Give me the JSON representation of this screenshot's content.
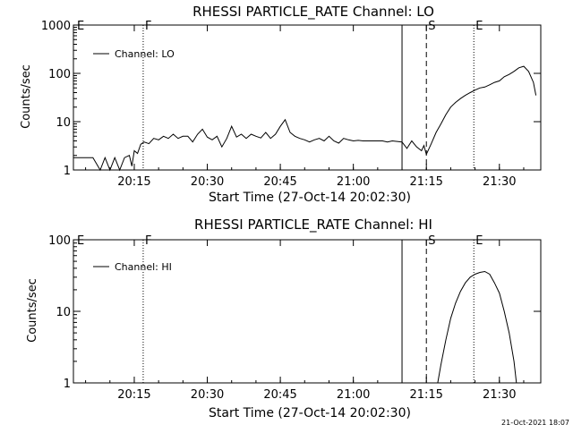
{
  "timestamp": "21-Oct-2021 18:07",
  "chart_data": [
    {
      "type": "line",
      "title": "RHESSI PARTICLE_RATE Channel: LO",
      "xlabel": "Start Time (27-Oct-14 20:02:30)",
      "ylabel": "Counts/sec",
      "yscale": "log",
      "ylim": [
        1,
        1000
      ],
      "xlim": [
        "20:02:30",
        "21:38:30"
      ],
      "x_tick_labels": [
        "20:15",
        "20:30",
        "20:45",
        "21:00",
        "21:15",
        "21:30"
      ],
      "y_tick_labels": [
        "1",
        "10",
        "100",
        "1000"
      ],
      "legend": {
        "entries": [
          "Channel: LO"
        ],
        "position": "top-left"
      },
      "markers": [
        {
          "time": "20:02:30",
          "label": "E",
          "style": "none"
        },
        {
          "time": "20:16:50",
          "label": "F",
          "style": "dotted"
        },
        {
          "time": "21:10:00",
          "label": "",
          "style": "solid"
        },
        {
          "time": "21:15:00",
          "label": "S",
          "style": "dashed"
        },
        {
          "time": "21:24:45",
          "label": "E",
          "style": "dotted"
        },
        {
          "time": "21:38:30",
          "label": "",
          "style": "dashdot"
        }
      ],
      "series": [
        {
          "name": "Channel: LO",
          "x": [
            "20:02:30",
            "20:06:30",
            "20:08:00",
            "20:09:00",
            "20:10:00",
            "20:11:00",
            "20:12:00",
            "20:13:00",
            "20:14:00",
            "20:14:30",
            "20:15:00",
            "20:15:40",
            "20:16:20",
            "20:17:00",
            "20:18:00",
            "20:19:00",
            "20:20:00",
            "20:21:00",
            "20:22:00",
            "20:23:00",
            "20:24:00",
            "20:25:00",
            "20:26:00",
            "20:27:00",
            "20:28:00",
            "20:29:00",
            "20:30:00",
            "20:31:00",
            "20:32:00",
            "20:33:00",
            "20:34:00",
            "20:35:00",
            "20:36:00",
            "20:37:00",
            "20:38:00",
            "20:39:00",
            "20:40:00",
            "20:41:00",
            "20:42:00",
            "20:43:00",
            "20:44:00",
            "20:45:00",
            "20:46:00",
            "20:47:00",
            "20:48:00",
            "20:49:00",
            "20:50:00",
            "20:51:00",
            "20:52:00",
            "20:53:00",
            "20:54:00",
            "20:55:00",
            "20:56:00",
            "20:57:00",
            "20:58:00",
            "20:59:00",
            "21:00:00",
            "21:01:00",
            "21:02:00",
            "21:03:00",
            "21:04:00",
            "21:05:00",
            "21:06:00",
            "21:07:00",
            "21:08:00",
            "21:09:00",
            "21:10:00",
            "21:11:00",
            "21:12:00",
            "21:13:00",
            "21:14:00",
            "21:14:30",
            "21:15:00",
            "21:16:00",
            "21:17:00",
            "21:18:00",
            "21:19:00",
            "21:20:00",
            "21:21:00",
            "21:22:00",
            "21:23:00",
            "21:24:00",
            "21:25:00",
            "21:26:00",
            "21:27:00",
            "21:28:00",
            "21:29:00",
            "21:30:00",
            "21:31:00",
            "21:32:00",
            "21:33:00",
            "21:34:00",
            "21:35:00",
            "21:36:00",
            "21:37:00",
            "21:37:30"
          ],
          "values": [
            1.8,
            1.8,
            1.0,
            1.8,
            1.0,
            1.8,
            1.0,
            1.8,
            2.0,
            1.2,
            2.5,
            2.2,
            3.4,
            3.8,
            3.5,
            4.5,
            4.2,
            5.0,
            4.5,
            5.5,
            4.5,
            5.0,
            5.0,
            3.8,
            5.5,
            7.0,
            4.8,
            4.2,
            5.0,
            3.0,
            4.5,
            8.0,
            4.8,
            5.5,
            4.5,
            5.5,
            5.0,
            4.6,
            6.0,
            4.5,
            5.5,
            8.0,
            11.0,
            6.0,
            5.0,
            4.5,
            4.2,
            3.8,
            4.2,
            4.5,
            4.0,
            5.0,
            4.0,
            3.6,
            4.5,
            4.2,
            4.0,
            4.1,
            4.0,
            4.0,
            4.0,
            4.0,
            4.0,
            3.8,
            4.0,
            3.9,
            3.8,
            2.8,
            4.0,
            3.0,
            2.5,
            3.2,
            2.1,
            3.5,
            6.0,
            9.0,
            14.0,
            20.0,
            25.0,
            30.0,
            35.0,
            40.0,
            45.0,
            50.0,
            52.0,
            58.0,
            65.0,
            70.0,
            85.0,
            95.0,
            110.0,
            130.0,
            140.0,
            110.0,
            65.0,
            35.0
          ]
        }
      ]
    },
    {
      "type": "line",
      "title": "RHESSI PARTICLE_RATE Channel: HI",
      "xlabel": "Start Time (27-Oct-14 20:02:30)",
      "ylabel": "Counts/sec",
      "yscale": "log",
      "ylim": [
        1,
        100
      ],
      "xlim": [
        "20:02:30",
        "21:38:30"
      ],
      "x_tick_labels": [
        "20:15",
        "20:30",
        "20:45",
        "21:00",
        "21:15",
        "21:30"
      ],
      "y_tick_labels": [
        "1",
        "10",
        "100"
      ],
      "legend": {
        "entries": [
          "Channel: HI"
        ],
        "position": "top-left"
      },
      "markers": [
        {
          "time": "20:02:30",
          "label": "E",
          "style": "none"
        },
        {
          "time": "20:16:50",
          "label": "F",
          "style": "dotted"
        },
        {
          "time": "21:10:00",
          "label": "",
          "style": "solid"
        },
        {
          "time": "21:15:00",
          "label": "S",
          "style": "dashed"
        },
        {
          "time": "21:24:45",
          "label": "E",
          "style": "dotted"
        },
        {
          "time": "21:38:30",
          "label": "",
          "style": "dashdot"
        }
      ],
      "series": [
        {
          "name": "Channel: HI",
          "x": [
            "21:17:20",
            "21:18:00",
            "21:19:00",
            "21:20:00",
            "21:21:00",
            "21:22:00",
            "21:23:00",
            "21:24:00",
            "21:25:00",
            "21:26:00",
            "21:27:00",
            "21:28:00",
            "21:29:00",
            "21:30:00",
            "21:31:00",
            "21:32:00",
            "21:33:00",
            "21:33:30"
          ],
          "values": [
            1.0,
            1.8,
            4.0,
            8.0,
            13.0,
            19.0,
            25.0,
            30.0,
            33.0,
            35.0,
            36.0,
            33.0,
            25.0,
            18.0,
            10.0,
            5.0,
            2.0,
            1.0
          ]
        }
      ]
    }
  ]
}
